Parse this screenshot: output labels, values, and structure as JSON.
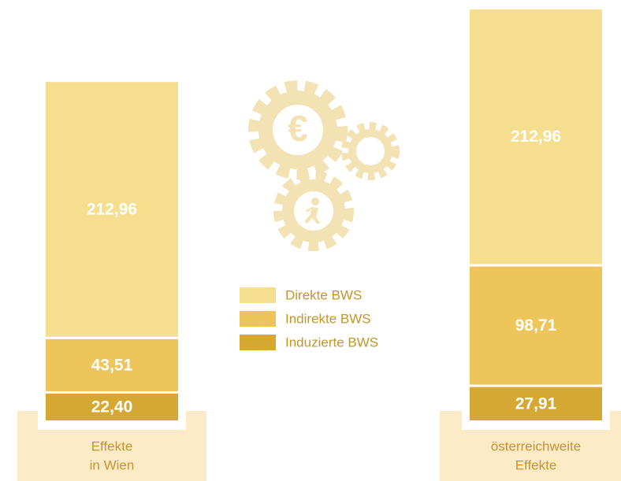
{
  "chart_data": {
    "type": "bar",
    "stacked": true,
    "categories": [
      [
        "Effekte",
        "in Wien"
      ],
      [
        "österreichweite",
        "Effekte"
      ]
    ],
    "series": [
      {
        "name": "Induzierte BWS",
        "color": "#d4a832",
        "values": [
          22.4,
          27.91
        ],
        "value_labels": [
          "22,40",
          "27,91"
        ]
      },
      {
        "name": "Indirekte BWS",
        "color": "#edc55a",
        "values": [
          43.51,
          98.71
        ],
        "value_labels": [
          "43,51",
          "98,71"
        ]
      },
      {
        "name": "Direkte BWS",
        "color": "#f5df8e",
        "values": [
          212.96,
          212.96
        ],
        "value_labels": [
          "212,96",
          "212,96"
        ]
      }
    ]
  }
}
